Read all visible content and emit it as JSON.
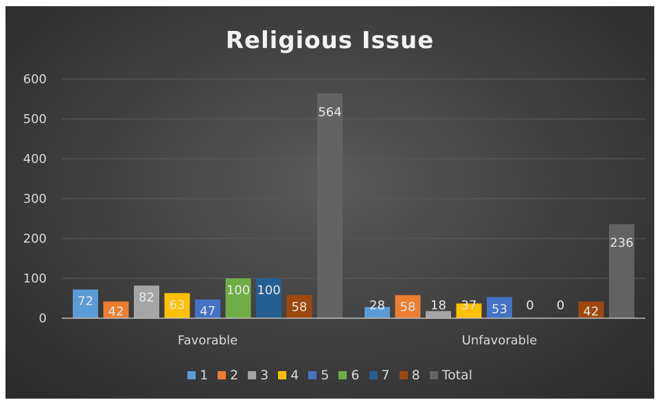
{
  "chart_data": {
    "type": "bar",
    "title": "Religious Issue",
    "categories": [
      "Favorable",
      "Unfavorable"
    ],
    "ylim": [
      0,
      600
    ],
    "yticks": [
      0,
      100,
      200,
      300,
      400,
      500,
      600
    ],
    "grid": true,
    "legend_position": "bottom",
    "series": [
      {
        "name": "1",
        "color": "#5b9bd5",
        "values": [
          72,
          28
        ]
      },
      {
        "name": "2",
        "color": "#ed7d31",
        "values": [
          42,
          58
        ]
      },
      {
        "name": "3",
        "color": "#a5a5a5",
        "values": [
          82,
          18
        ]
      },
      {
        "name": "4",
        "color": "#ffc000",
        "values": [
          63,
          37
        ]
      },
      {
        "name": "5",
        "color": "#4472c4",
        "values": [
          47,
          53
        ]
      },
      {
        "name": "6",
        "color": "#70ad47",
        "values": [
          100,
          0
        ]
      },
      {
        "name": "7",
        "color": "#255e91",
        "values": [
          100,
          0
        ]
      },
      {
        "name": "8",
        "color": "#9e480e",
        "values": [
          58,
          42
        ]
      },
      {
        "name": "Total",
        "color": "#636363",
        "values": [
          564,
          236
        ]
      }
    ]
  }
}
